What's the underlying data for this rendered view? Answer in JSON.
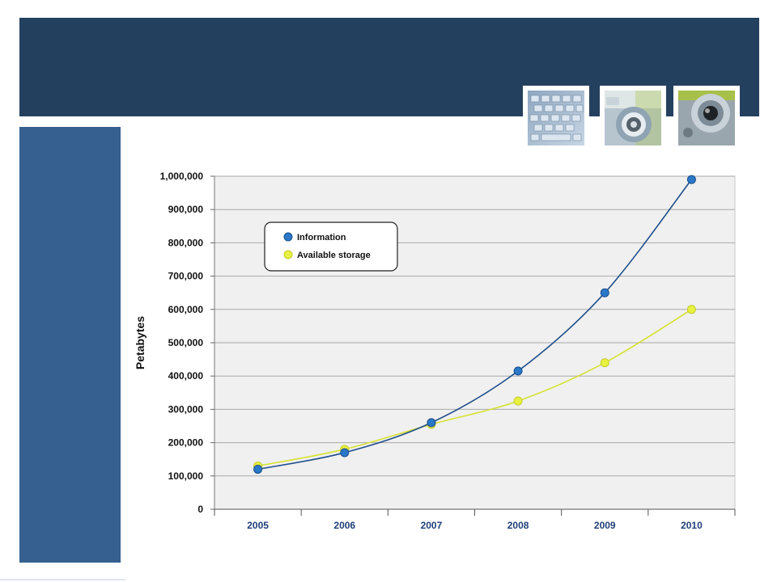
{
  "images": [
    {
      "name": "keyboard-photo",
      "icon": "keyboard-icon"
    },
    {
      "name": "camera-dial-photo",
      "icon": "camera-icon"
    },
    {
      "name": "lens-photo",
      "icon": "lens-icon"
    }
  ],
  "colors": {
    "header": "#24405f",
    "sidebar": "#35608f",
    "plot_bg": "#f0f0f0",
    "information": "#2a78c8",
    "information_line": "#1f4e8c",
    "storage": "#e8f040",
    "storage_line": "#d6e22e"
  },
  "chart_data": {
    "type": "line",
    "title": "",
    "xlabel": "",
    "ylabel": "Petabytes",
    "categories": [
      "2005",
      "2006",
      "2007",
      "2008",
      "2009",
      "2010"
    ],
    "series": [
      {
        "name": "Information",
        "values": [
          120000,
          170000,
          260000,
          415000,
          650000,
          990000
        ]
      },
      {
        "name": "Available storage",
        "values": [
          130000,
          180000,
          255000,
          325000,
          440000,
          600000
        ]
      }
    ],
    "ylim": [
      0,
      1000000
    ],
    "yticks": [
      "0",
      "100,000",
      "200,000",
      "300,000",
      "400,000",
      "500,000",
      "600,000",
      "700,000",
      "800,000",
      "900,000",
      "1,000,000"
    ],
    "grid": true,
    "legend_position": "top-left"
  }
}
